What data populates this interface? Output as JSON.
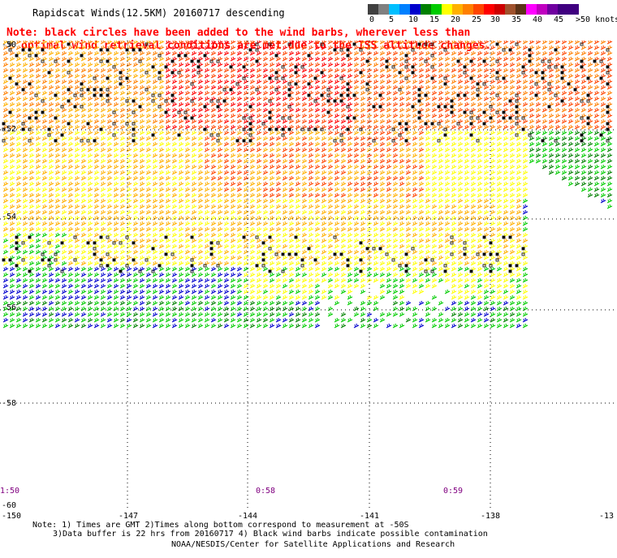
{
  "header": {
    "title": "Rapidscat Winds(12.5KM) 20160717 descending",
    "note_line1": "Note: black circles have been added to the wind barbs, wherever less than",
    "note_line2": "optimal wind retrieval conditions are met due to the ISS altitude changes."
  },
  "color_scale": {
    "colors": [
      "#404040",
      "#808080",
      "#00bfff",
      "#0080ff",
      "#0000cd",
      "#008000",
      "#00cc00",
      "#ffff00",
      "#ffb000",
      "#ff7f00",
      "#ff4500",
      "#ff0000",
      "#cd0000",
      "#a0522d",
      "#5c3317",
      "#ff00ff",
      "#c000c0",
      "#7000a0",
      "#400080"
    ],
    "labels": [
      "0",
      "5",
      "10",
      "15",
      "20",
      "25",
      "30",
      "35",
      "40",
      "45",
      ">50 knots"
    ]
  },
  "map": {
    "latitudes": [
      "-50",
      "-52",
      "-54",
      "-56",
      "-58",
      "-60"
    ],
    "longitudes": [
      "-150",
      "-147",
      "-144",
      "-141",
      "-138",
      "-13"
    ],
    "lon_range": [
      -150,
      -135
    ],
    "lat_range": [
      -60,
      -50
    ],
    "times": [
      "1:50",
      "0:58",
      "0:59"
    ]
  },
  "footer": {
    "note1": "Note: 1) Times are GMT 2)Times along bottom correspond to measurement at -50S",
    "note2": "3)Data buffer is 22 hrs from 20160717 4) Black wind barbs indicate possible contamination",
    "credit": "NOAA/NESDIS/Center for Satellite Applications and Research"
  }
}
